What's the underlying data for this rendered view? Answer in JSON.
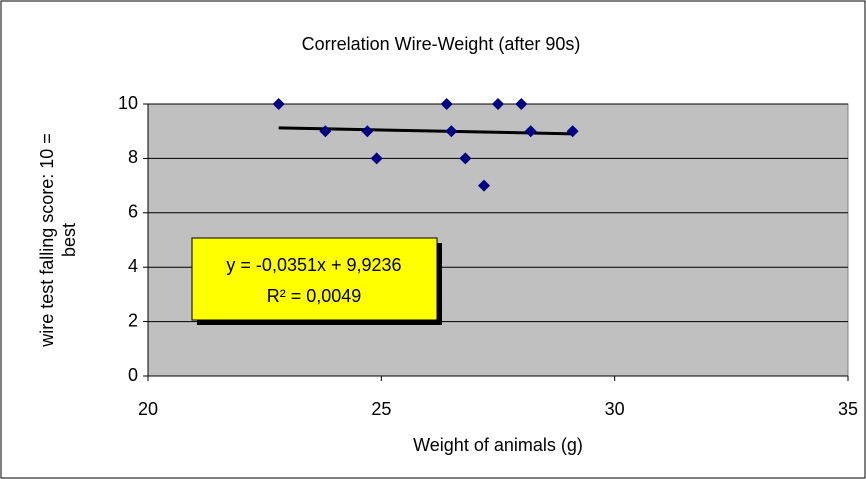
{
  "chart_data": {
    "type": "scatter",
    "title": "Correlation Wire-Weight (after 90s)",
    "x_label": "Weight of animals (g)",
    "y_label": [
      "wire test falling score: 10 =",
      "best"
    ],
    "x": [
      22.8,
      23.8,
      24.7,
      24.9,
      26.4,
      26.5,
      26.8,
      27.2,
      27.5,
      28.0,
      28.2,
      29.1
    ],
    "values": [
      10,
      9,
      9,
      8,
      10,
      9,
      8,
      7,
      10,
      10,
      9,
      9
    ],
    "color": "#000080",
    "xlim": [
      20,
      35
    ],
    "xticks": [
      20,
      25,
      30,
      35
    ],
    "ylim": [
      0,
      10
    ],
    "yticks": [
      0,
      2,
      4,
      6,
      8,
      10
    ],
    "grid": true,
    "trendline": {
      "slope": -0.0351,
      "intercept": 9.9236,
      "equation": "y = -0,0351x + 9,9236",
      "r2": "R² = 0,0049"
    }
  }
}
